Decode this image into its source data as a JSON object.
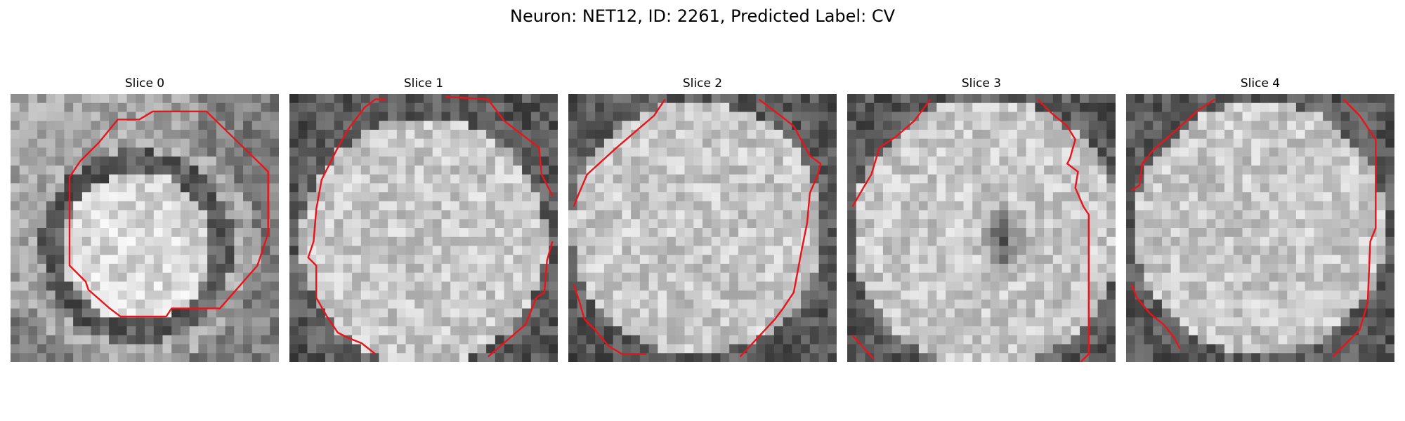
{
  "suptitle": "Neuron: NET12, ID: 2261, Predicted Label: CV",
  "overlay_color": "#e8141a",
  "slices": [
    {
      "title": "Slice 0",
      "seed": 11,
      "center": [
        0.47,
        0.57
      ],
      "radius": 0.28,
      "ring": true
    },
    {
      "title": "Slice 1",
      "seed": 23,
      "center": [
        0.5,
        0.55
      ],
      "radius": 0.46,
      "ring": false
    },
    {
      "title": "Slice 2",
      "seed": 37,
      "center": [
        0.48,
        0.5
      ],
      "radius": 0.47,
      "ring": false
    },
    {
      "title": "Slice 3",
      "seed": 53,
      "center": [
        0.52,
        0.52
      ],
      "radius": 0.5,
      "ring": false,
      "dark_spot": [
        0.58,
        0.55
      ]
    },
    {
      "title": "Slice 4",
      "seed": 71,
      "center": [
        0.5,
        0.5
      ],
      "radius": 0.47,
      "ring": false
    }
  ]
}
